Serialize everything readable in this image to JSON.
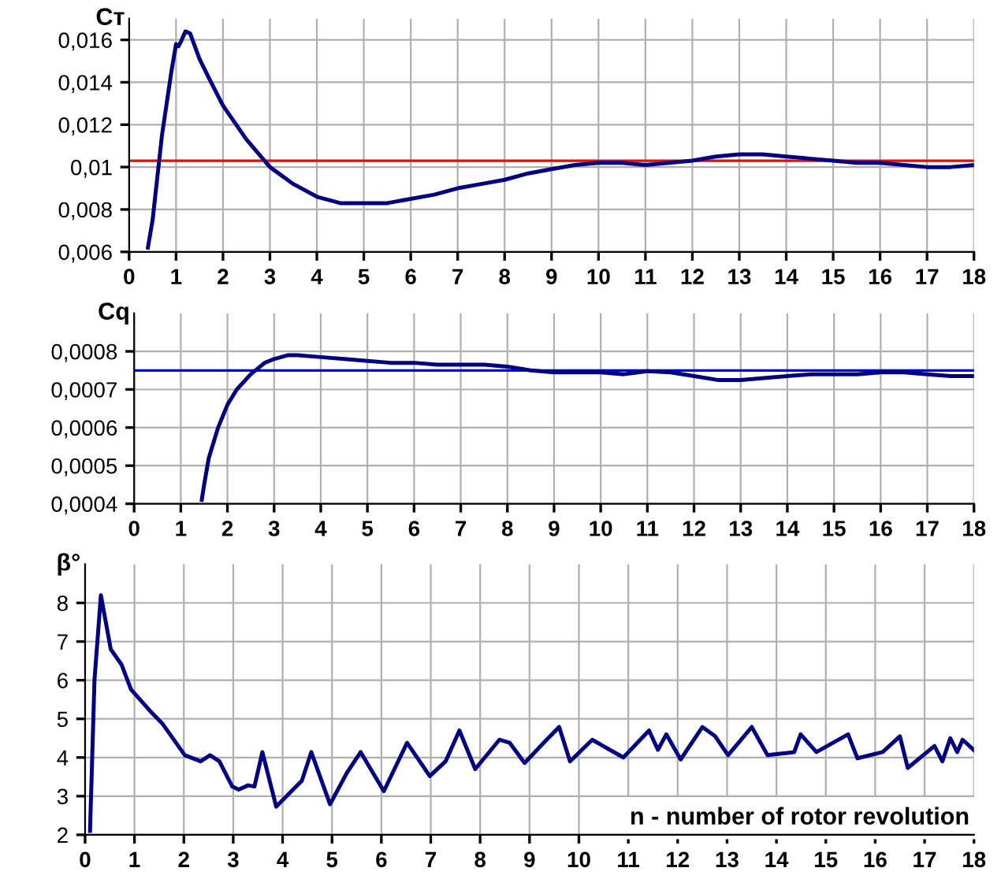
{
  "chart_data": [
    {
      "type": "line",
      "ylabel": "Cт",
      "xlim": [
        0,
        18
      ],
      "ylim": [
        0.006,
        0.017
      ],
      "grid": true,
      "marker": "none",
      "xticks": [
        0,
        1,
        2,
        3,
        4,
        5,
        6,
        7,
        8,
        9,
        10,
        11,
        12,
        13,
        14,
        15,
        16,
        17,
        18
      ],
      "yticks": [
        {
          "value": 0.006,
          "label": "0,006"
        },
        {
          "value": 0.008,
          "label": "0,008"
        },
        {
          "value": 0.01,
          "label": "0,01"
        },
        {
          "value": 0.012,
          "label": "0,012"
        },
        {
          "value": 0.014,
          "label": "0,014"
        },
        {
          "value": 0.016,
          "label": "0,016"
        }
      ],
      "ref_lines": [
        {
          "axis": "y",
          "value": 0.0103,
          "color": "#ff0000"
        }
      ],
      "series": [
        {
          "color": "#000080",
          "x": [
            0.4,
            0.5,
            0.6,
            0.7,
            0.8,
            0.9,
            1.0,
            1.05,
            1.1,
            1.2,
            1.3,
            1.5,
            1.7,
            2.0,
            2.5,
            3.0,
            3.5,
            4.0,
            4.5,
            5.0,
            5.5,
            6.0,
            6.5,
            7.0,
            7.5,
            8.0,
            8.5,
            9.0,
            9.5,
            10,
            10.5,
            11,
            11.5,
            12,
            12.5,
            13,
            13.5,
            14,
            14.5,
            15,
            15.5,
            16,
            16.5,
            17,
            17.5,
            18
          ],
          "values": [
            0.0062,
            0.0075,
            0.0095,
            0.0115,
            0.013,
            0.0145,
            0.0158,
            0.0157,
            0.0159,
            0.0164,
            0.0163,
            0.0151,
            0.0142,
            0.0129,
            0.0113,
            0.01,
            0.0092,
            0.0086,
            0.0083,
            0.0083,
            0.0083,
            0.0085,
            0.0087,
            0.009,
            0.0092,
            0.0094,
            0.0097,
            0.0099,
            0.0101,
            0.0102,
            0.0102,
            0.0101,
            0.0102,
            0.0103,
            0.0105,
            0.0106,
            0.0106,
            0.0105,
            0.0104,
            0.0103,
            0.0102,
            0.0102,
            0.0101,
            0.01,
            0.01,
            0.0101
          ]
        }
      ]
    },
    {
      "type": "line",
      "ylabel": "Cq",
      "xlim": [
        0,
        18
      ],
      "ylim": [
        0.0004,
        0.0009
      ],
      "grid": true,
      "marker": "none",
      "xticks": [
        0,
        1,
        2,
        3,
        4,
        5,
        6,
        7,
        8,
        9,
        10,
        11,
        12,
        13,
        14,
        15,
        16,
        17,
        18
      ],
      "yticks": [
        {
          "value": 0.0004,
          "label": "0,0004"
        },
        {
          "value": 0.0005,
          "label": "0,0005"
        },
        {
          "value": 0.0006,
          "label": "0,0006"
        },
        {
          "value": 0.0007,
          "label": "0,0007"
        },
        {
          "value": 0.0008,
          "label": "0,0008"
        }
      ],
      "ref_lines": [
        {
          "axis": "y",
          "value": 0.00075,
          "color": "#0000ff"
        }
      ],
      "series": [
        {
          "color": "#000080",
          "x": [
            1.45,
            1.5,
            1.6,
            1.8,
            2.0,
            2.2,
            2.5,
            2.8,
            3.0,
            3.3,
            3.5,
            4.0,
            4.5,
            5,
            5.5,
            6,
            6.5,
            7,
            7.5,
            8,
            8.5,
            9,
            9.5,
            10,
            10.5,
            11,
            11.5,
            12,
            12.5,
            13,
            13.5,
            14,
            14.5,
            15,
            15.5,
            16,
            16.5,
            17,
            17.5,
            18
          ],
          "values": [
            0.00041,
            0.00045,
            0.00052,
            0.0006,
            0.00066,
            0.0007,
            0.00074,
            0.00077,
            0.00078,
            0.00079,
            0.00079,
            0.000785,
            0.00078,
            0.000775,
            0.00077,
            0.00077,
            0.000765,
            0.000765,
            0.000765,
            0.00076,
            0.00075,
            0.000745,
            0.000745,
            0.000745,
            0.00074,
            0.000748,
            0.000745,
            0.000735,
            0.000725,
            0.000725,
            0.00073,
            0.000735,
            0.00074,
            0.00074,
            0.00074,
            0.000745,
            0.000745,
            0.00074,
            0.000735,
            0.000735
          ]
        }
      ]
    },
    {
      "type": "line",
      "ylabel": "β°",
      "xlabel": "n - number of rotor revolution",
      "xlim": [
        0,
        18
      ],
      "ylim": [
        2,
        9
      ],
      "grid": true,
      "marker": "none",
      "xticks": [
        0,
        1,
        2,
        3,
        4,
        5,
        6,
        7,
        8,
        9,
        10,
        11,
        12,
        13,
        14,
        15,
        16,
        17,
        18
      ],
      "yticks": [
        2,
        3,
        4,
        5,
        6,
        7,
        8
      ],
      "series": [
        {
          "color": "#000080",
          "x": [
            0.1,
            0.19,
            0.32,
            0.52,
            0.74,
            0.93,
            1.32,
            1.57,
            2.02,
            2.34,
            2.53,
            2.72,
            2.98,
            3.11,
            3.3,
            3.43,
            3.59,
            3.87,
            4.39,
            4.58,
            4.96,
            5.3,
            5.58,
            6.05,
            6.52,
            6.98,
            7.3,
            7.58,
            7.9,
            8.39,
            8.6,
            8.9,
            9.3,
            9.6,
            9.82,
            10.27,
            10.9,
            11.42,
            11.6,
            11.77,
            12.06,
            12.5,
            12.76,
            13.02,
            13.5,
            13.82,
            14.36,
            14.49,
            14.81,
            15.45,
            15.64,
            16.15,
            16.5,
            16.66,
            17.05,
            17.2,
            17.36,
            17.52,
            17.66,
            17.77,
            18
          ],
          "values": [
            2.1,
            6.0,
            8.2,
            6.8,
            6.4,
            5.76,
            5.2,
            4.87,
            4.06,
            3.9,
            4.06,
            3.9,
            3.25,
            3.17,
            3.28,
            3.25,
            4.14,
            2.73,
            3.4,
            4.14,
            2.79,
            3.6,
            4.14,
            3.13,
            4.38,
            3.52,
            3.9,
            4.7,
            3.7,
            4.46,
            4.38,
            3.86,
            4.4,
            4.79,
            3.9,
            4.46,
            4.0,
            4.7,
            4.2,
            4.6,
            3.95,
            4.79,
            4.55,
            4.06,
            4.79,
            4.06,
            4.14,
            4.6,
            4.14,
            4.6,
            3.98,
            4.14,
            4.55,
            3.73,
            4.14,
            4.3,
            3.9,
            4.5,
            4.14,
            4.46,
            4.19
          ]
        }
      ]
    }
  ]
}
